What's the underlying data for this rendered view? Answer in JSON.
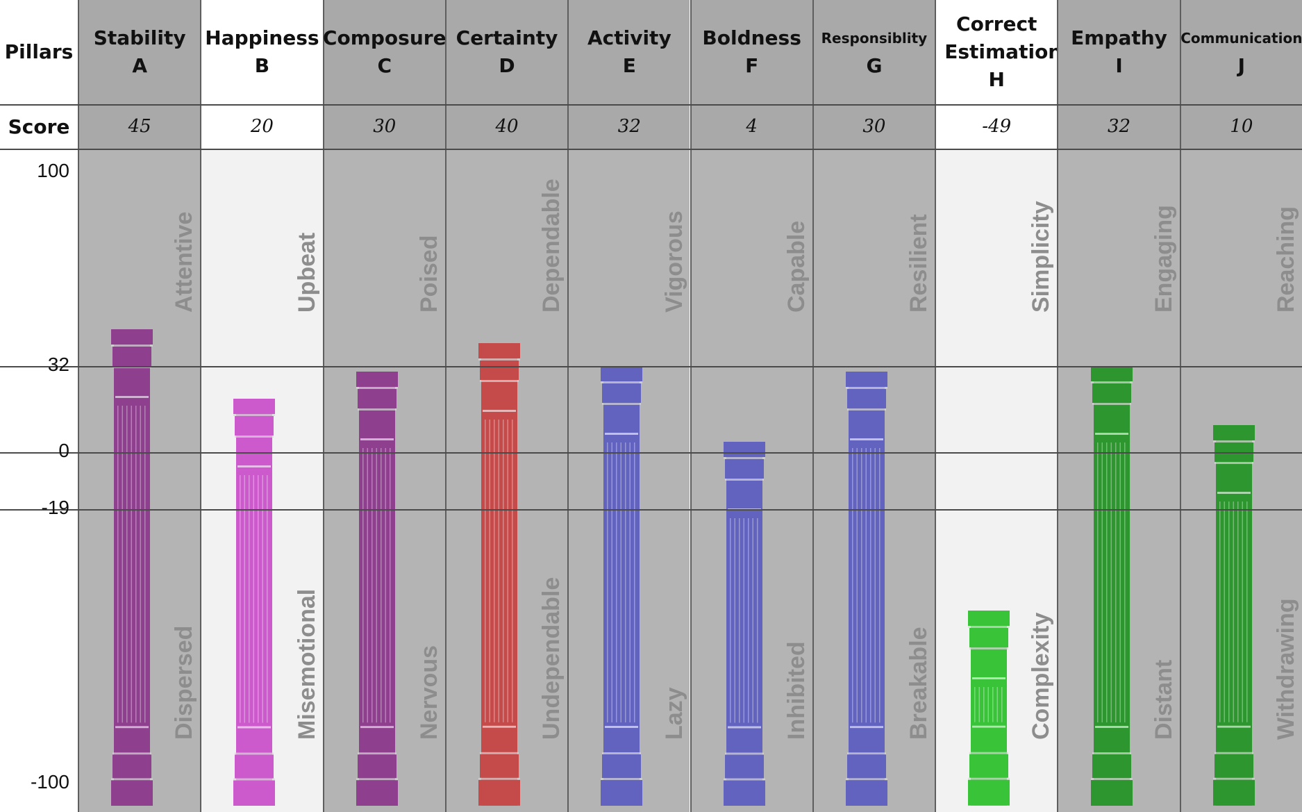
{
  "header": {
    "pillars_label": "Pillars",
    "score_label": "Score"
  },
  "chart_data": {
    "type": "bar",
    "ylim": [
      -100,
      100
    ],
    "yticks": [
      100,
      32,
      0,
      -19,
      -100
    ],
    "categories": [
      {
        "name": "Stability",
        "letter": "A",
        "score": "45",
        "value": 45,
        "top_label": "Attentive",
        "bottom_label": "Dispersed",
        "color": "#8e3f8e",
        "bg": "#b4b4b4"
      },
      {
        "name": "Happiness",
        "letter": "B",
        "score": "20",
        "value": 20,
        "top_label": "Upbeat",
        "bottom_label": "Misemotional",
        "color": "#cc5acc",
        "bg": "#f2f2f2"
      },
      {
        "name": "Composure",
        "letter": "C",
        "score": "30",
        "value": 30,
        "top_label": "Poised",
        "bottom_label": "Nervous",
        "color": "#8e3f8e",
        "bg": "#b4b4b4"
      },
      {
        "name": "Certainty",
        "letter": "D",
        "score": "40",
        "value": 40,
        "top_label": "Dependable",
        "bottom_label": "Undependable",
        "color": "#c54a4a",
        "bg": "#b4b4b4"
      },
      {
        "name": "Activity",
        "letter": "E",
        "score": "32",
        "value": 32,
        "top_label": "Vigorous",
        "bottom_label": "Lazy",
        "color": "#6262bf",
        "bg": "#b4b4b4"
      },
      {
        "name": "Boldness",
        "letter": "F",
        "score": "4",
        "value": 4,
        "top_label": "Capable",
        "bottom_label": "Inhibited",
        "color": "#6262bf",
        "bg": "#b4b4b4"
      },
      {
        "name": "Responsiblity",
        "letter": "G",
        "score": "30",
        "value": 30,
        "top_label": "Resilient",
        "bottom_label": "Breakable",
        "color": "#6262bf",
        "bg": "#b4b4b4"
      },
      {
        "name": "Correct Estimation",
        "letter": "H",
        "score": "-49",
        "value": -49,
        "top_label": "Simplicity",
        "bottom_label": "Complexity",
        "color": "#39c339",
        "bg": "#f2f2f2"
      },
      {
        "name": "Empathy",
        "letter": "I",
        "score": "32",
        "value": 32,
        "top_label": "Engaging",
        "bottom_label": "Distant",
        "color": "#2e962e",
        "bg": "#b4b4b4"
      },
      {
        "name": "Communication",
        "letter": "J",
        "score": "10",
        "value": 10,
        "top_label": "Reaching",
        "bottom_label": "Withdrawing",
        "color": "#2e962e",
        "bg": "#b4b4b4"
      }
    ]
  }
}
